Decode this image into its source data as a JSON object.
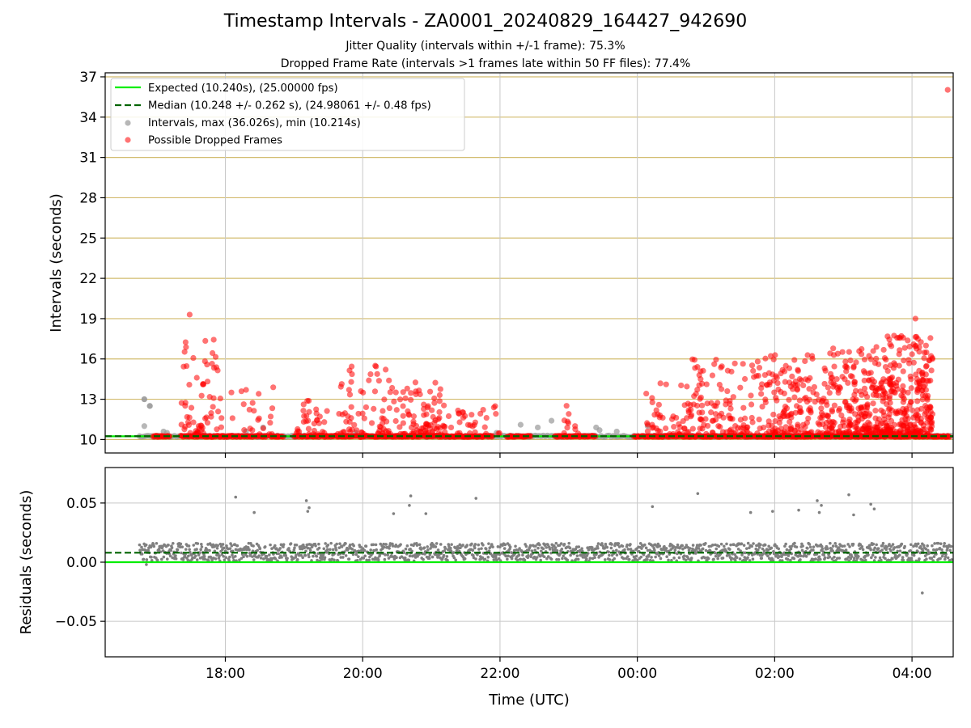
{
  "figure": {
    "title": "Timestamp Intervals - ZA0001_20240829_164427_942690",
    "subtitle_1": "Jitter Quality (intervals within +/-1 frame): 75.3%",
    "subtitle_2": "Dropped Frame Rate (intervals >1 frames late within 50 FF files): 77.4%"
  },
  "colors": {
    "expected": "#00ee00",
    "median": "#006400",
    "intervals": "#999999",
    "dropped": "#ff0000",
    "residuals": "#808080",
    "hgrid_top": "#d2bb6e",
    "grid": "#c8c8c8"
  },
  "chart_data": [
    {
      "type": "scatter",
      "ylabel": "Intervals (seconds)",
      "ylim": [
        9.0,
        37.3
      ],
      "yticks": [
        10,
        13,
        16,
        19,
        22,
        25,
        28,
        31,
        34,
        37
      ],
      "grid": true,
      "legend_position": "top-left",
      "legend": [
        "Expected (10.240s), (25.00000 fps)",
        "Median (10.248 +/- 0.262 s), (24.98061 +/- 0.48 fps)",
        "Intervals, max (36.026s), min (10.214s)",
        "Possible Dropped Frames"
      ],
      "expected_value": 10.24,
      "median_value": 10.248,
      "x_units": "hours since 00:00 UTC of start day",
      "x_range": [
        16.25,
        28.6
      ],
      "notable_points": [
        {
          "series": "dropped",
          "x": 28.52,
          "y": 36.03
        },
        {
          "series": "dropped",
          "x": 17.48,
          "y": 19.3
        },
        {
          "series": "dropped",
          "x": 28.05,
          "y": 19.0
        },
        {
          "series": "intervals",
          "x": 16.82,
          "y": 13.0
        },
        {
          "series": "intervals",
          "x": 16.9,
          "y": 12.5
        }
      ]
    },
    {
      "type": "scatter",
      "xlabel": "Time (UTC)",
      "ylabel": "Residuals (seconds)",
      "ylim": [
        -0.08,
        0.08
      ],
      "yticks": [
        -0.05,
        0.0,
        0.05
      ],
      "ytick_labels": [
        "−0.05",
        "0.00",
        "0.05"
      ],
      "xticks": [
        18,
        20,
        22,
        24,
        26,
        28
      ],
      "xtick_labels": [
        "18:00",
        "20:00",
        "22:00",
        "00:00",
        "02:00",
        "04:00"
      ],
      "grid": true,
      "expected_value": 0.0,
      "median_value": 0.008,
      "outliers": [
        {
          "x": 18.15,
          "y": 0.055
        },
        {
          "x": 18.42,
          "y": 0.042
        },
        {
          "x": 19.18,
          "y": 0.052
        },
        {
          "x": 19.2,
          "y": 0.043
        },
        {
          "x": 19.22,
          "y": 0.046
        },
        {
          "x": 20.45,
          "y": 0.041
        },
        {
          "x": 20.68,
          "y": 0.048
        },
        {
          "x": 20.7,
          "y": 0.056
        },
        {
          "x": 20.92,
          "y": 0.041
        },
        {
          "x": 21.65,
          "y": 0.054
        },
        {
          "x": 24.22,
          "y": 0.047
        },
        {
          "x": 24.88,
          "y": 0.058
        },
        {
          "x": 25.65,
          "y": 0.042
        },
        {
          "x": 25.97,
          "y": 0.043
        },
        {
          "x": 26.35,
          "y": 0.044
        },
        {
          "x": 26.62,
          "y": 0.052
        },
        {
          "x": 26.65,
          "y": 0.042
        },
        {
          "x": 26.68,
          "y": 0.048
        },
        {
          "x": 27.08,
          "y": 0.057
        },
        {
          "x": 27.15,
          "y": 0.04
        },
        {
          "x": 27.4,
          "y": 0.049
        },
        {
          "x": 27.45,
          "y": 0.045
        },
        {
          "x": 28.15,
          "y": -0.026
        },
        {
          "x": 16.85,
          "y": -0.002
        }
      ]
    }
  ]
}
